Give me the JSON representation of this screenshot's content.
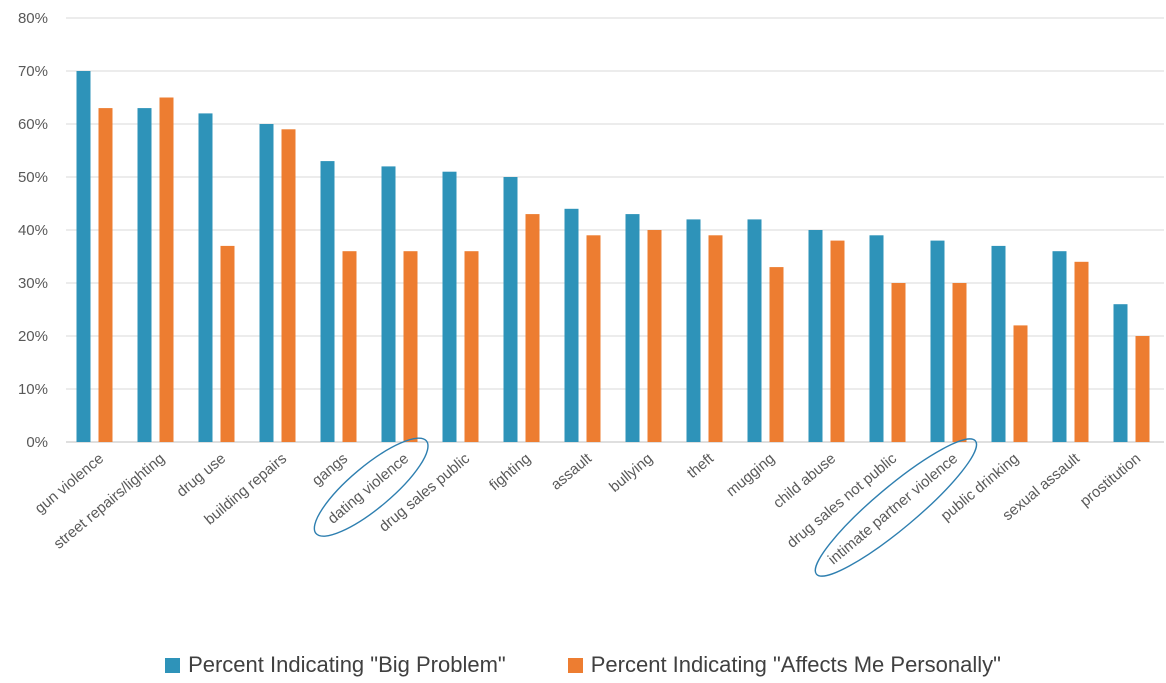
{
  "chart_data": {
    "type": "bar",
    "categories": [
      "gun violence",
      "street repairs/lighting",
      "drug use",
      "building repairs",
      "gangs",
      "dating violence",
      "drug sales public",
      "fighting",
      "assault",
      "bullying",
      "theft",
      "mugging",
      "child abuse",
      "drug sales not public",
      "intimate partner violence",
      "public drinking",
      "sexual assault",
      "prostitution"
    ],
    "series": [
      {
        "name": "Percent Indicating \"Big Problem\"",
        "color": "#2E93B9",
        "values": [
          70,
          63,
          62,
          60,
          53,
          52,
          51,
          50,
          44,
          43,
          42,
          42,
          40,
          39,
          38,
          37,
          36,
          26
        ]
      },
      {
        "name": "Percent Indicating \"Affects Me Personally\"",
        "color": "#ED7D31",
        "values": [
          63,
          65,
          37,
          59,
          36,
          36,
          36,
          43,
          39,
          40,
          39,
          33,
          38,
          30,
          30,
          22,
          34,
          20
        ]
      }
    ],
    "ylim": [
      0,
      80
    ],
    "yticks": [
      "0%",
      "10%",
      "20%",
      "30%",
      "40%",
      "50%",
      "60%",
      "70%",
      "80%"
    ],
    "grid": true,
    "legend_position": "bottom",
    "highlighted_categories": [
      "dating violence",
      "intimate partner violence"
    ],
    "highlight_color": "#2E7FB0"
  }
}
